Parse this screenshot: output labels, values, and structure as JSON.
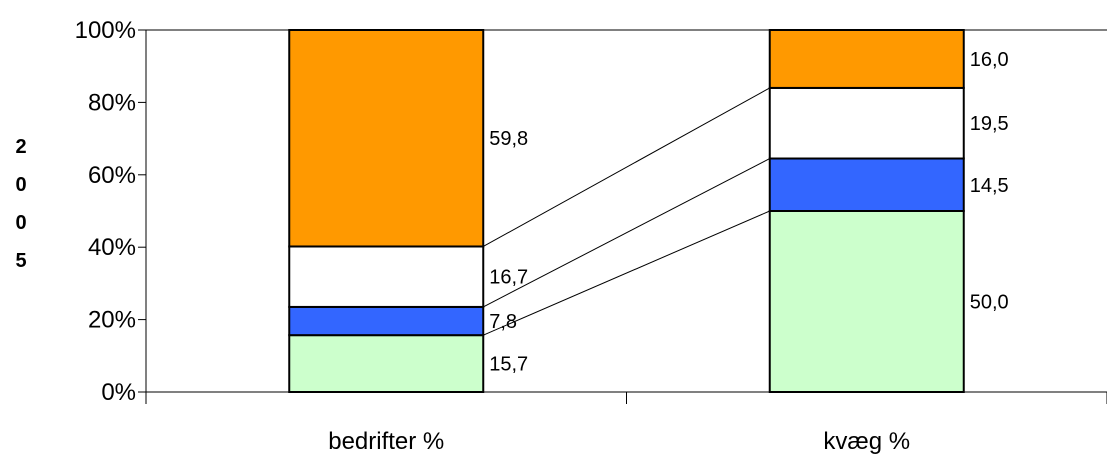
{
  "chart_data": {
    "type": "bar",
    "stacked": true,
    "percent": true,
    "categories": [
      "bedrifter %",
      "kvæg %"
    ],
    "series": [
      {
        "values": [
          15.7,
          50.0
        ],
        "color": "#ccffcc"
      },
      {
        "values": [
          7.8,
          14.5
        ],
        "color": "#3366ff"
      },
      {
        "values": [
          16.7,
          19.5
        ],
        "color": "#ffffff"
      },
      {
        "values": [
          59.8,
          16.0
        ],
        "color": "#ff9900"
      }
    ],
    "data_labels": [
      [
        "15,7",
        "7,8",
        "16,7",
        "59,8"
      ],
      [
        "50,0",
        "14,5",
        "19,5",
        "16,0"
      ]
    ],
    "ylabel": "2005",
    "ylabel_chars": [
      "2",
      "0",
      "0",
      "5"
    ],
    "ylim": [
      0,
      100
    ],
    "yticks": [
      0,
      20,
      40,
      60,
      80,
      100
    ],
    "ytick_labels": [
      "0%",
      "20%",
      "40%",
      "60%",
      "80%",
      "100%"
    ],
    "series_lines": true,
    "grid": false
  }
}
